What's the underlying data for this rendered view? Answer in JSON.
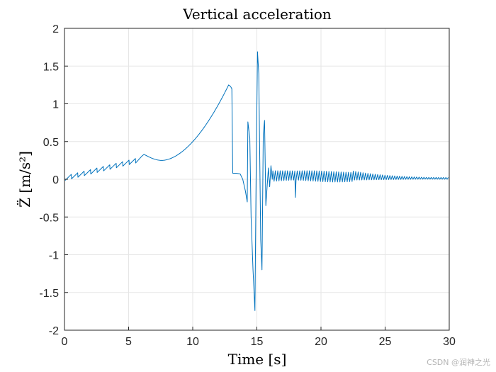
{
  "chart_data": {
    "type": "line",
    "title": "Vertical acceleration",
    "xlabel": "Time [s]",
    "ylabel": "Z̈ [m/s²]",
    "xlim": [
      0,
      30
    ],
    "ylim": [
      -2,
      2
    ],
    "xticks": [
      0,
      5,
      10,
      15,
      20,
      25,
      30
    ],
    "xtick_labels": [
      "0",
      "5",
      "10",
      "15",
      "20",
      "25",
      "30"
    ],
    "yticks": [
      2,
      1.5,
      1,
      0.5,
      0,
      -0.5,
      -1,
      -1.5,
      -2
    ],
    "ytick_labels": [
      "2",
      "1.5",
      "1",
      "0.5",
      "0",
      "-0.5",
      "-1",
      "-1.5",
      "-2"
    ],
    "grid": true,
    "series": [
      {
        "name": "Vertical acceleration",
        "color": "#0072BD",
        "description": "sawtooth rising 0 to 0.33 over 0-6.5 s, smooth rise to 1.25 at ~13 s, violent oscillation 14-16 s (peak 1.69, trough -1.74), then decaying ~20 Hz oscillation around 0.05 toward 0 by 30 s",
        "key_points": [
          {
            "x": 0,
            "y": 0
          },
          {
            "x": 6.2,
            "y": 0.33
          },
          {
            "x": 7.5,
            "y": 0.25
          },
          {
            "x": 10,
            "y": 0.45
          },
          {
            "x": 12.8,
            "y": 1.25
          },
          {
            "x": 13.1,
            "y": 0.08
          },
          {
            "x": 15.05,
            "y": 1.69
          },
          {
            "x": 14.85,
            "y": -1.74
          },
          {
            "x": 18,
            "y": -0.24
          },
          {
            "x": 30,
            "y": 0
          }
        ]
      }
    ]
  },
  "watermark": "CSDN @润神之光"
}
